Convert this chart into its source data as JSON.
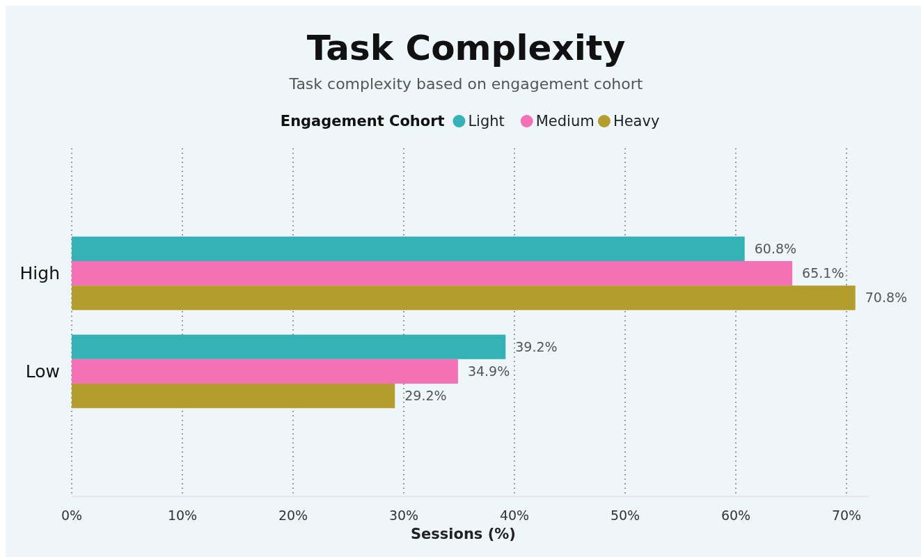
{
  "chart_data": {
    "type": "bar",
    "orientation": "horizontal",
    "title": "Task Complexity",
    "subtitle": "Task complexity based on engagement cohort",
    "legend_title": "Engagement Cohort",
    "legend": "top",
    "xlabel": "Sessions (%)",
    "categories": [
      "High",
      "Low"
    ],
    "series": [
      {
        "name": "Light",
        "color": "#35b2b5",
        "values": [
          60.8,
          39.2
        ],
        "value_labels": [
          "60.8%",
          "39.2%"
        ]
      },
      {
        "name": "Medium",
        "color": "#f371b4",
        "values": [
          65.1,
          34.9
        ],
        "value_labels": [
          "65.1%",
          "34.9%"
        ]
      },
      {
        "name": "Heavy",
        "color": "#b39d2c",
        "values": [
          70.8,
          29.2
        ],
        "value_labels": [
          "70.8%",
          "29.2%"
        ]
      }
    ],
    "xlim": [
      0,
      72
    ],
    "xticks": [
      {
        "value": 0,
        "label": "0%"
      },
      {
        "value": 10,
        "label": "10%"
      },
      {
        "value": 20,
        "label": "20%"
      },
      {
        "value": 30,
        "label": "30%"
      },
      {
        "value": 40,
        "label": "40%"
      },
      {
        "value": 50,
        "label": "50%"
      },
      {
        "value": 60,
        "label": "60%"
      },
      {
        "value": 70,
        "label": "70%"
      }
    ],
    "grid": "x"
  }
}
